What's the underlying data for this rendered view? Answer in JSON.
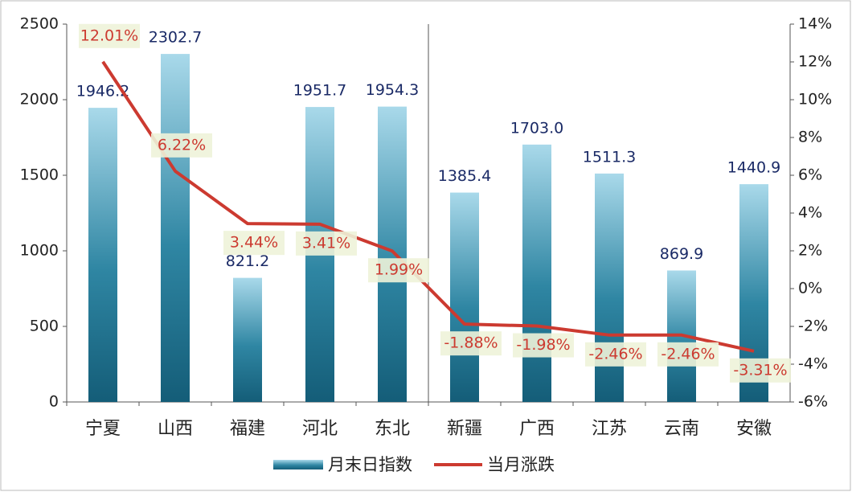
{
  "chart_data": {
    "type": "bar",
    "categories": [
      "宁夏",
      "山西",
      "福建",
      "河北",
      "东北",
      "新疆",
      "广西",
      "江苏",
      "云南",
      "安徽"
    ],
    "series": [
      {
        "name": "月末日指数",
        "type": "bar",
        "color": "#1f7391",
        "values": [
          1946.2,
          2302.7,
          821.2,
          1951.7,
          1954.3,
          1385.4,
          1703.0,
          1511.3,
          869.9,
          1440.9
        ],
        "value_labels": [
          "1946.2",
          "2302.7",
          "821.2",
          "1951.7",
          "1954.3",
          "1385.4",
          "1703.0",
          "1511.3",
          "869.9",
          "1440.9"
        ]
      },
      {
        "name": "当月涨跌",
        "type": "line",
        "axis": "y2",
        "color": "#cc3a30",
        "values": [
          12.01,
          6.22,
          3.44,
          3.41,
          1.99,
          -1.88,
          -1.98,
          -2.46,
          -2.46,
          -3.31
        ],
        "value_labels": [
          "12.01%",
          "6.22%",
          "3.44%",
          "3.41%",
          "1.99%",
          "-1.88%",
          "-1.98%",
          "-2.46%",
          "-2.46%",
          "-3.31%"
        ]
      }
    ],
    "ylim": [
      0,
      2500
    ],
    "yticks": [
      0,
      500,
      1000,
      1500,
      2000,
      2500
    ],
    "y2lim": [
      -6,
      14
    ],
    "y2ticks": [
      {
        "value": -6,
        "label": "-6%"
      },
      {
        "value": -4,
        "label": "-4%"
      },
      {
        "value": -2,
        "label": "-2%"
      },
      {
        "value": 0,
        "label": "0%"
      },
      {
        "value": 2,
        "label": "2%"
      },
      {
        "value": 4,
        "label": "4%"
      },
      {
        "value": 6,
        "label": "6%"
      },
      {
        "value": 8,
        "label": "8%"
      },
      {
        "value": 10,
        "label": "10%"
      },
      {
        "value": 12,
        "label": "12%"
      },
      {
        "value": 14,
        "label": "14%"
      }
    ],
    "grid": false
  }
}
